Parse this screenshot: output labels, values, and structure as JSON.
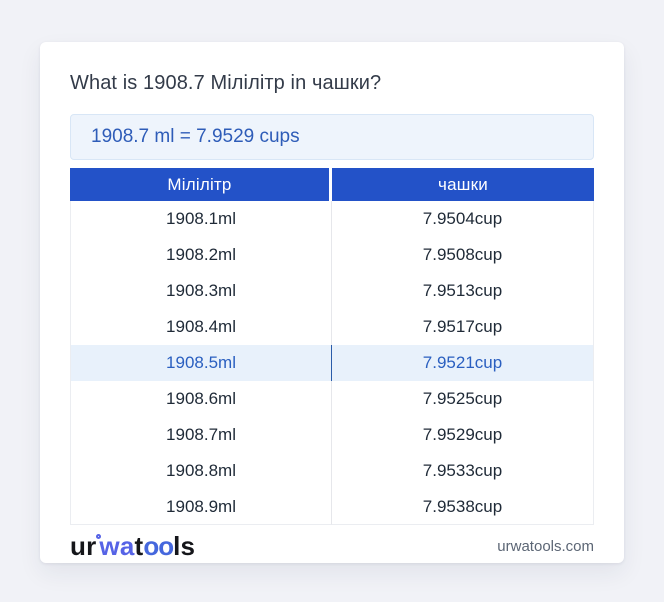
{
  "page": {
    "title": "What is 1908.7 Мілілітр in чашки?",
    "result": "1908.7 ml = 7.9529 cups"
  },
  "table": {
    "headers": {
      "ml": "Мілілітр",
      "cups": "чашки"
    },
    "rows": [
      {
        "ml": "1908.1ml",
        "cup": "7.9504cup",
        "highlight": false
      },
      {
        "ml": "1908.2ml",
        "cup": "7.9508cup",
        "highlight": false
      },
      {
        "ml": "1908.3ml",
        "cup": "7.9513cup",
        "highlight": false
      },
      {
        "ml": "1908.4ml",
        "cup": "7.9517cup",
        "highlight": false
      },
      {
        "ml": "1908.5ml",
        "cup": "7.9521cup",
        "highlight": true
      },
      {
        "ml": "1908.6ml",
        "cup": "7.9525cup",
        "highlight": false
      },
      {
        "ml": "1908.7ml",
        "cup": "7.9529cup",
        "highlight": false
      },
      {
        "ml": "1908.8ml",
        "cup": "7.9533cup",
        "highlight": false
      },
      {
        "ml": "1908.9ml",
        "cup": "7.9538cup",
        "highlight": false
      }
    ]
  },
  "footer": {
    "logo": {
      "p1": "ur",
      "p2": "wa",
      "p3": "t",
      "p4": "oo",
      "p5": "ls"
    },
    "domain": "urwatools.com"
  },
  "colors": {
    "page_bg": "#f1f2f7",
    "header_bg": "#2352c8",
    "result_bg": "#eef4fc",
    "result_text": "#2e5cb8",
    "highlight_bg": "#e8f1fb",
    "highlight_text": "#2a5fc0",
    "highlight_divider": "#2b5ca9",
    "logo_blue": "#5663e6",
    "domain_text": "#5c6675"
  }
}
